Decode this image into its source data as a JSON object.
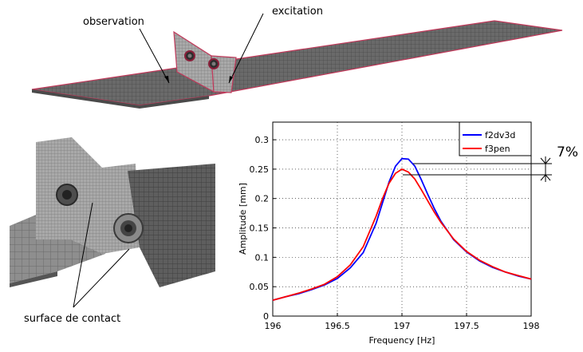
{
  "labels": {
    "observation": "observation",
    "excitation": "excitation",
    "contact": "surface de contact"
  },
  "annotation": {
    "percent": "7%"
  },
  "chart_data": {
    "type": "line",
    "xlabel": "Frequency [Hz]",
    "ylabel": "Amplitude [mm]",
    "xlim": [
      196,
      198
    ],
    "ylim": [
      0,
      0.33
    ],
    "xticks": [
      196,
      196.5,
      197,
      197.5,
      198
    ],
    "xtick_labels": [
      "196",
      "196.5",
      "197",
      "197.5",
      "198"
    ],
    "yticks": [
      0,
      0.05,
      0.1,
      0.15,
      0.2,
      0.25,
      0.3
    ],
    "ytick_labels": [
      "0",
      "0.05",
      "0.1",
      "0.15",
      "0.2",
      "0.25",
      "0.3"
    ],
    "grid": true,
    "legend_position": "top-right",
    "series": [
      {
        "name": "f2dv3d",
        "color": "#0000ff",
        "x": [
          196,
          196.1,
          196.2,
          196.3,
          196.4,
          196.5,
          196.6,
          196.7,
          196.8,
          196.85,
          196.9,
          196.95,
          197,
          197.05,
          197.1,
          197.15,
          197.2,
          197.25,
          197.3,
          197.4,
          197.5,
          197.6,
          197.7,
          197.8,
          197.9,
          198
        ],
        "y": [
          0.027,
          0.033,
          0.038,
          0.045,
          0.053,
          0.064,
          0.082,
          0.108,
          0.158,
          0.193,
          0.228,
          0.255,
          0.268,
          0.267,
          0.255,
          0.232,
          0.207,
          0.183,
          0.162,
          0.13,
          0.109,
          0.094,
          0.083,
          0.075,
          0.068,
          0.063
        ]
      },
      {
        "name": "f3pen",
        "color": "#ff0000",
        "x": [
          196,
          196.1,
          196.2,
          196.3,
          196.4,
          196.5,
          196.6,
          196.7,
          196.8,
          196.85,
          196.9,
          196.95,
          197,
          197.05,
          197.1,
          197.15,
          197.2,
          197.25,
          197.3,
          197.4,
          197.5,
          197.6,
          197.7,
          197.8,
          197.9,
          198
        ],
        "y": [
          0.027,
          0.033,
          0.039,
          0.046,
          0.054,
          0.067,
          0.087,
          0.118,
          0.17,
          0.2,
          0.226,
          0.243,
          0.25,
          0.245,
          0.233,
          0.215,
          0.196,
          0.177,
          0.16,
          0.131,
          0.11,
          0.095,
          0.084,
          0.075,
          0.069,
          0.063
        ]
      }
    ]
  }
}
